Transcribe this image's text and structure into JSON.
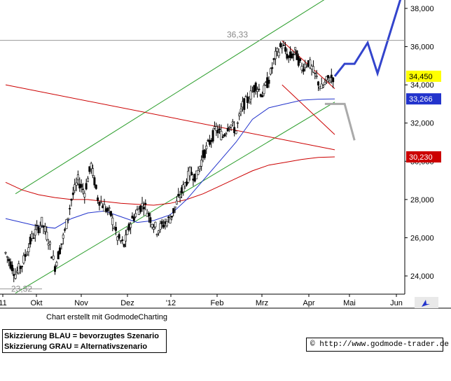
{
  "chart_data": {
    "type": "candlestick",
    "instrument_note": "",
    "x_tick_labels": [
      "11",
      "Okt",
      "Nov",
      "Dez",
      "'12",
      "Feb",
      "Mrz",
      "Apr",
      "Mai",
      "Jun"
    ],
    "y_axis": {
      "ticks": [
        "38,000",
        "36,000",
        "34,000",
        "32,000",
        "30,000",
        "28,000",
        "26,000",
        "24,000"
      ],
      "ylim": [
        22.8,
        38.6
      ],
      "position": "right"
    },
    "annotations": {
      "high": "36,33",
      "low": "23,32"
    },
    "price_tags": [
      {
        "value": 34.45,
        "label": "34,450",
        "color": "#ffff00",
        "text_color": "#000000"
      },
      {
        "value": 33.266,
        "label": "33,266",
        "color": "#2233cc",
        "text_color": "#ffffff"
      },
      {
        "value": 30.23,
        "label": "30,230",
        "color": "#cc0000",
        "text_color": "#ffffff"
      }
    ],
    "price_series": [
      {
        "x": 0,
        "v": 25.2
      },
      {
        "x": 3,
        "v": 24.1
      },
      {
        "x": 5,
        "v": 24.6
      },
      {
        "x": 8,
        "v": 26.0
      },
      {
        "x": 11,
        "v": 26.8
      },
      {
        "x": 13,
        "v": 25.9
      },
      {
        "x": 15,
        "v": 24.5
      },
      {
        "x": 18,
        "v": 26.3
      },
      {
        "x": 20,
        "v": 28.0
      },
      {
        "x": 22,
        "v": 29.0
      },
      {
        "x": 24,
        "v": 28.4
      },
      {
        "x": 26,
        "v": 29.8
      },
      {
        "x": 28,
        "v": 28.1
      },
      {
        "x": 30,
        "v": 27.6
      },
      {
        "x": 32,
        "v": 27.2
      },
      {
        "x": 34,
        "v": 26.0
      },
      {
        "x": 36,
        "v": 25.6
      },
      {
        "x": 38,
        "v": 26.8
      },
      {
        "x": 40,
        "v": 27.4
      },
      {
        "x": 42,
        "v": 27.8
      },
      {
        "x": 44,
        "v": 27.0
      },
      {
        "x": 46,
        "v": 26.4
      },
      {
        "x": 48,
        "v": 26.7
      },
      {
        "x": 50,
        "v": 27.0
      },
      {
        "x": 52,
        "v": 27.8
      },
      {
        "x": 54,
        "v": 28.6
      },
      {
        "x": 56,
        "v": 29.4
      },
      {
        "x": 58,
        "v": 29.2
      },
      {
        "x": 60,
        "v": 30.3
      },
      {
        "x": 62,
        "v": 31.0
      },
      {
        "x": 64,
        "v": 31.7
      },
      {
        "x": 66,
        "v": 31.3
      },
      {
        "x": 68,
        "v": 32.0
      },
      {
        "x": 70,
        "v": 31.6
      },
      {
        "x": 72,
        "v": 32.9
      },
      {
        "x": 74,
        "v": 33.3
      },
      {
        "x": 76,
        "v": 34.0
      },
      {
        "x": 78,
        "v": 33.5
      },
      {
        "x": 80,
        "v": 34.3
      },
      {
        "x": 82,
        "v": 35.5
      },
      {
        "x": 84,
        "v": 36.1
      },
      {
        "x": 86,
        "v": 35.4
      },
      {
        "x": 88,
        "v": 35.7
      },
      {
        "x": 90,
        "v": 34.9
      },
      {
        "x": 92,
        "v": 35.2
      },
      {
        "x": 94,
        "v": 34.5
      },
      {
        "x": 96,
        "v": 33.8
      },
      {
        "x": 98,
        "v": 34.3
      },
      {
        "x": 100,
        "v": 34.45
      }
    ],
    "moving_averages": [
      {
        "name": "",
        "color": "#cc0000",
        "points": [
          [
            0,
            28.9
          ],
          [
            5,
            28.5
          ],
          [
            10,
            28.25
          ],
          [
            15,
            28.1
          ],
          [
            20,
            28.0
          ],
          [
            25,
            28.0
          ],
          [
            30,
            27.9
          ],
          [
            35,
            27.8
          ],
          [
            40,
            27.75
          ],
          [
            45,
            27.7
          ],
          [
            50,
            27.8
          ],
          [
            55,
            28.0
          ],
          [
            60,
            28.3
          ],
          [
            65,
            28.7
          ],
          [
            70,
            29.1
          ],
          [
            75,
            29.5
          ],
          [
            80,
            29.8
          ],
          [
            85,
            29.95
          ],
          [
            90,
            30.1
          ],
          [
            95,
            30.2
          ],
          [
            100,
            30.23
          ]
        ]
      },
      {
        "name": "",
        "color": "#2233cc",
        "points": [
          [
            0,
            27.0
          ],
          [
            5,
            26.8
          ],
          [
            10,
            26.6
          ],
          [
            15,
            26.5
          ],
          [
            20,
            27.0
          ],
          [
            25,
            27.3
          ],
          [
            30,
            27.4
          ],
          [
            35,
            27.1
          ],
          [
            40,
            26.8
          ],
          [
            45,
            26.9
          ],
          [
            50,
            27.2
          ],
          [
            55,
            28.0
          ],
          [
            60,
            29.0
          ],
          [
            65,
            30.0
          ],
          [
            70,
            31.0
          ],
          [
            75,
            32.2
          ],
          [
            80,
            32.8
          ],
          [
            85,
            33.0
          ],
          [
            90,
            33.2
          ],
          [
            95,
            33.25
          ],
          [
            100,
            33.266
          ]
        ]
      }
    ],
    "trend_lines": [
      {
        "color": "#2a9d2a",
        "points": [
          [
            3,
            28.3
          ],
          [
            100,
            38.8
          ]
        ]
      },
      {
        "color": "#2a9d2a",
        "points": [
          [
            3,
            23.1
          ],
          [
            100,
            33.1
          ]
        ]
      },
      {
        "color": "#cc0000",
        "points": [
          [
            0,
            34.0
          ],
          [
            100,
            30.6
          ]
        ]
      },
      {
        "color": "#cc0000",
        "points": [
          [
            84,
            36.3
          ],
          [
            100,
            33.8
          ]
        ]
      },
      {
        "color": "#cc0000",
        "points": [
          [
            84,
            34.0
          ],
          [
            100,
            31.4
          ]
        ]
      }
    ],
    "scenarios": [
      {
        "name": "BLAU",
        "color": "#3344cc",
        "points": [
          [
            100,
            34.45
          ],
          [
            103,
            35.1
          ],
          [
            106,
            35.1
          ],
          [
            110,
            36.2
          ],
          [
            113,
            34.6
          ],
          [
            120,
            38.5
          ]
        ]
      },
      {
        "name": "GRAU",
        "color": "#aaaaaa",
        "points": [
          [
            97,
            33.0
          ],
          [
            103,
            33.0
          ],
          [
            106,
            31.1
          ]
        ]
      }
    ],
    "grid": false,
    "title": "",
    "xlabel": "",
    "ylabel": ""
  },
  "footer": {
    "credit": "Chart erstellt mit GodmodeCharting",
    "legend_line1": "Skizzierung BLAU = bevorzugtes Szenario",
    "legend_line2": "Skizzierung GRAU = Alternativszenario",
    "url": "© http://www.godmode-trader.de"
  }
}
